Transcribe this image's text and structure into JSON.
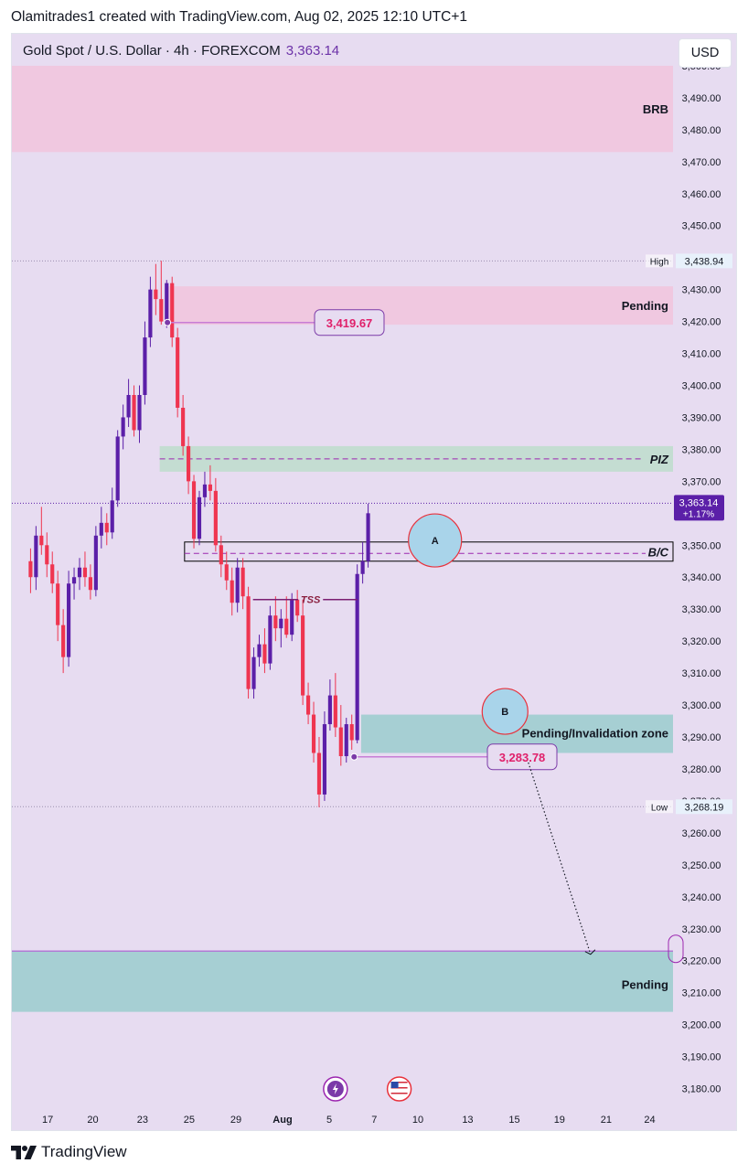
{
  "header": {
    "credit": "Olamitrades1 created with TradingView.com, Aug 02, 2025 12:10 UTC+1"
  },
  "legend": {
    "symbol": "Gold Spot / U.S. Dollar · 4h · FOREXCOM",
    "last_price": "3,363.14"
  },
  "currency_button": "USD",
  "footer": {
    "brand": "TradingView"
  },
  "colors": {
    "background": "#e7dcf1",
    "bull": "#5b1fa8",
    "bear": "#ef3550",
    "pink_zone": "#f0c8e0",
    "green_zone": "#c4ddd2",
    "teal_zone": "#a6cfd3",
    "label_border": "#7b3aa8",
    "label_text": "#e0206a",
    "circle_fill": "#a9d4ea",
    "circle_stroke": "#e8323c"
  },
  "chart_data": {
    "type": "candlestick",
    "timeframe": "4h",
    "y_axis": {
      "range": [
        3173,
        3510
      ],
      "tick_labels": [
        "3,500.00",
        "3,490.00",
        "3,480.00",
        "3,470.00",
        "3,460.00",
        "3,450.00",
        "3,440.00",
        "3,430.00",
        "3,420.00",
        "3,410.00",
        "3,400.00",
        "3,390.00",
        "3,380.00",
        "3,370.00",
        "3,360.00",
        "3,350.00",
        "3,340.00",
        "3,330.00",
        "3,320.00",
        "3,310.00",
        "3,300.00",
        "3,290.00",
        "3,280.00",
        "3,270.00",
        "3,260.00",
        "3,250.00",
        "3,240.00",
        "3,230.00",
        "3,220.00",
        "3,210.00",
        "3,200.00",
        "3,190.00",
        "3,180.00"
      ],
      "tick_values": [
        3500,
        3490,
        3480,
        3470,
        3460,
        3450,
        3440,
        3430,
        3420,
        3410,
        3400,
        3390,
        3380,
        3370,
        3360,
        3350,
        3340,
        3330,
        3320,
        3310,
        3300,
        3290,
        3280,
        3270,
        3260,
        3250,
        3240,
        3230,
        3220,
        3210,
        3200,
        3190,
        3180
      ]
    },
    "x_axis": {
      "tick_labels": [
        "17",
        "20",
        "23",
        "25",
        "29",
        "Aug",
        "5",
        "7",
        "10",
        "13",
        "15",
        "19",
        "21",
        "24"
      ],
      "tick_positions": [
        1.1,
        4.0,
        7.2,
        10.2,
        13.2,
        16.2,
        19.2,
        22.1,
        24.9,
        28.1,
        31.1,
        34.0,
        37.0,
        39.8
      ],
      "range": [
        -1.2,
        41.3
      ]
    },
    "candles": [
      [
        0.0,
        3345,
        3349,
        3335,
        3340
      ],
      [
        0.35,
        3340,
        3356,
        3336,
        3353
      ],
      [
        0.7,
        3353,
        3362,
        3347,
        3350
      ],
      [
        1.05,
        3350,
        3354,
        3340,
        3344
      ],
      [
        1.4,
        3344,
        3348,
        3335,
        3338
      ],
      [
        1.75,
        3338,
        3342,
        3320,
        3325
      ],
      [
        2.1,
        3325,
        3330,
        3310,
        3315
      ],
      [
        2.45,
        3315,
        3342,
        3312,
        3338
      ],
      [
        2.8,
        3338,
        3343,
        3333,
        3340
      ],
      [
        3.15,
        3340,
        3346,
        3336,
        3343
      ],
      [
        3.5,
        3343,
        3348,
        3337,
        3340
      ],
      [
        3.85,
        3340,
        3344,
        3333,
        3336
      ],
      [
        4.2,
        3336,
        3356,
        3334,
        3353
      ],
      [
        4.55,
        3353,
        3362,
        3349,
        3357
      ],
      [
        4.9,
        3357,
        3360,
        3350,
        3354
      ],
      [
        5.25,
        3354,
        3368,
        3352,
        3364
      ],
      [
        5.6,
        3364,
        3386,
        3362,
        3384
      ],
      [
        5.95,
        3384,
        3394,
        3380,
        3390
      ],
      [
        6.3,
        3390,
        3402,
        3387,
        3397
      ],
      [
        6.65,
        3397,
        3400,
        3384,
        3386
      ],
      [
        7.0,
        3386,
        3400,
        3382,
        3397
      ],
      [
        7.35,
        3397,
        3420,
        3394,
        3415
      ],
      [
        7.7,
        3415,
        3434,
        3412,
        3430
      ],
      [
        8.05,
        3430,
        3438,
        3422,
        3427
      ],
      [
        8.4,
        3427,
        3439,
        3419,
        3420
      ],
      [
        8.75,
        3420,
        3433,
        3418,
        3432
      ],
      [
        9.1,
        3432,
        3434,
        3412,
        3415
      ],
      [
        9.45,
        3415,
        3418,
        3390,
        3393
      ],
      [
        9.8,
        3393,
        3397,
        3378,
        3381
      ],
      [
        10.15,
        3381,
        3384,
        3366,
        3370
      ],
      [
        10.5,
        3370,
        3372,
        3349,
        3352
      ],
      [
        10.85,
        3352,
        3367,
        3350,
        3365
      ],
      [
        11.2,
        3365,
        3373,
        3362,
        3369
      ],
      [
        11.55,
        3369,
        3375,
        3364,
        3367
      ],
      [
        11.9,
        3367,
        3371,
        3348,
        3350
      ],
      [
        12.25,
        3350,
        3353,
        3340,
        3344
      ],
      [
        12.6,
        3344,
        3348,
        3336,
        3339
      ],
      [
        12.95,
        3339,
        3343,
        3328,
        3332
      ],
      [
        13.3,
        3332,
        3346,
        3329,
        3343
      ],
      [
        13.65,
        3343,
        3346,
        3330,
        3334
      ],
      [
        14.0,
        3334,
        3337,
        3302,
        3305
      ],
      [
        14.35,
        3305,
        3318,
        3302,
        3315
      ],
      [
        14.7,
        3315,
        3322,
        3312,
        3319
      ],
      [
        15.05,
        3319,
        3324,
        3310,
        3313
      ],
      [
        15.4,
        3313,
        3331,
        3311,
        3328
      ],
      [
        15.75,
        3328,
        3334,
        3320,
        3324
      ],
      [
        16.1,
        3324,
        3330,
        3318,
        3327
      ],
      [
        16.45,
        3327,
        3334,
        3321,
        3322
      ],
      [
        16.8,
        3322,
        3335,
        3320,
        3333
      ],
      [
        17.15,
        3333,
        3336,
        3326,
        3328
      ],
      [
        17.5,
        3328,
        3333,
        3300,
        3303
      ],
      [
        17.85,
        3303,
        3307,
        3294,
        3297
      ],
      [
        18.2,
        3297,
        3301,
        3282,
        3285
      ],
      [
        18.55,
        3285,
        3290,
        3268,
        3272
      ],
      [
        18.9,
        3272,
        3298,
        3270,
        3294
      ],
      [
        19.25,
        3294,
        3308,
        3292,
        3303
      ],
      [
        19.6,
        3303,
        3310,
        3290,
        3293
      ],
      [
        19.95,
        3293,
        3300,
        3281,
        3284
      ],
      [
        20.3,
        3284,
        3296,
        3282,
        3294
      ],
      [
        20.65,
        3294,
        3297,
        3286,
        3289
      ],
      [
        21.0,
        3289,
        3344,
        3288,
        3341
      ],
      [
        21.35,
        3341,
        3351,
        3338,
        3345
      ],
      [
        21.7,
        3345,
        3363,
        3343,
        3360
      ]
    ],
    "levels": {
      "high": {
        "label": "High",
        "value": "3,438.94"
      },
      "low": {
        "label": "Low",
        "value": "3,268.19"
      },
      "last": {
        "value": "3,363.14",
        "change": "+1.17%"
      }
    },
    "zones": [
      {
        "label": "BRB",
        "from": 3473,
        "to": 3500
      },
      {
        "label": "Pending",
        "from": 3419,
        "to": 3431
      },
      {
        "label": "PIZ",
        "from": 3373,
        "to": 3381
      },
      {
        "label": "B/C",
        "from": 3345,
        "to": 3351
      },
      {
        "label": "Pending/Invalidation zone",
        "from": 3285,
        "to": 3297
      },
      {
        "label": "Pending",
        "from": 3204,
        "to": 3223
      }
    ],
    "annotations": {
      "tss": "TSS",
      "price_label_upper": "3,419.67",
      "price_label_lower": "3,283.78",
      "circle_a": "A",
      "circle_b": "B"
    }
  }
}
